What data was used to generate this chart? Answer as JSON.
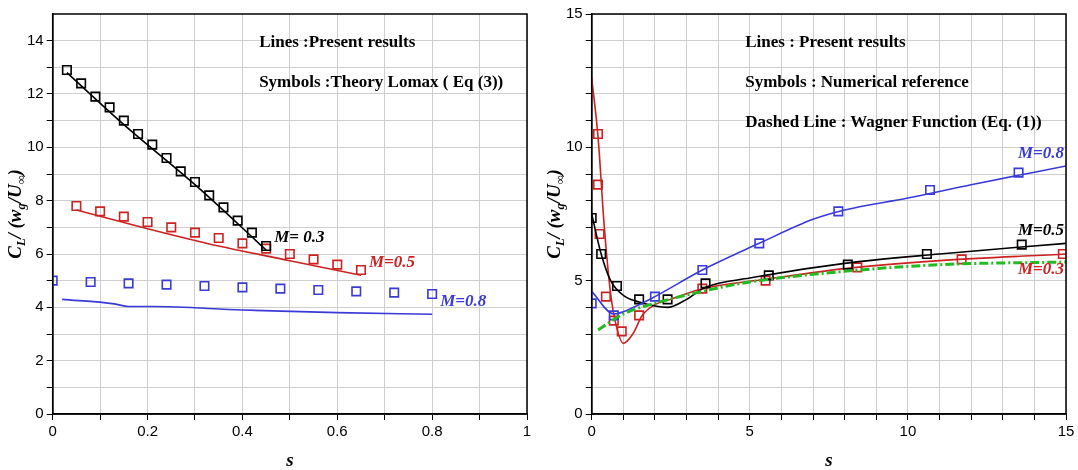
{
  "chart_data": [
    {
      "type": "line",
      "xlabel": "s",
      "ylabel": "C$_{L}$/ (w$_{g}$/U$_{∞}$)",
      "xlim": [
        0,
        1
      ],
      "ylim": [
        0,
        15
      ],
      "xticks": [
        0,
        {
          "value": 0.1,
          "label": null
        },
        0.2,
        {
          "value": 0.3,
          "label": null
        },
        0.4,
        {
          "value": 0.5,
          "label": null
        },
        0.6,
        {
          "value": 0.7,
          "label": null
        },
        0.8,
        {
          "value": 0.9,
          "label": null
        },
        1
      ],
      "yticks": [
        0,
        {
          "value": 1,
          "label": null
        },
        2,
        {
          "value": 3,
          "label": null
        },
        4,
        {
          "value": 5,
          "label": null
        },
        6,
        {
          "value": 7,
          "label": null
        },
        8,
        {
          "value": 9,
          "label": null
        },
        10,
        {
          "value": 11,
          "label": null
        },
        12,
        {
          "value": 13,
          "label": null
        },
        14
      ],
      "grid": true,
      "annotations": [
        "Lines :Present results",
        "Symbols :Theory Lomax ( Eq (3))"
      ],
      "series": [
        {
          "type": "line",
          "name": "M= 0.3",
          "color": "#000000",
          "marker": "none",
          "line_style": "solid",
          "x": [
            0.03,
            0.15,
            0.3,
            0.45
          ],
          "values": [
            12.8,
            10.85,
            8.6,
            6.15
          ]
        },
        {
          "type": "scatter",
          "color": "#000000",
          "marker": "square",
          "x": [
            0.03,
            0.06,
            0.09,
            0.12,
            0.15,
            0.18,
            0.21,
            0.24,
            0.27,
            0.3,
            0.33,
            0.36,
            0.39,
            0.42,
            0.45
          ],
          "values": [
            12.9,
            12.4,
            11.9,
            11.5,
            11.0,
            10.5,
            10.1,
            9.6,
            9.1,
            8.7,
            8.2,
            7.75,
            7.25,
            6.8,
            6.3
          ]
        },
        {
          "type": "line",
          "name": "M=0.5",
          "color": "#cc2222",
          "marker": "none",
          "line_style": "solid",
          "x": [
            0.05,
            0.2,
            0.35,
            0.5,
            0.65
          ],
          "values": [
            7.65,
            6.95,
            6.3,
            5.75,
            5.2
          ]
        },
        {
          "type": "scatter",
          "color": "#cc2222",
          "marker": "square",
          "x": [
            0.05,
            0.1,
            0.15,
            0.2,
            0.25,
            0.3,
            0.35,
            0.4,
            0.45,
            0.5,
            0.55,
            0.6,
            0.65
          ],
          "values": [
            7.8,
            7.6,
            7.4,
            7.2,
            7.0,
            6.8,
            6.6,
            6.4,
            6.2,
            6.0,
            5.8,
            5.6,
            5.4
          ]
        },
        {
          "type": "line",
          "name": "M=0.8",
          "color": "#3a3ad8",
          "marker": "none",
          "line_style": "solid",
          "x": [
            0.02,
            0.13,
            0.16,
            0.21,
            0.4,
            0.6,
            0.8
          ],
          "values": [
            4.3,
            4.13,
            4.03,
            4.03,
            3.9,
            3.8,
            3.74
          ]
        },
        {
          "type": "scatter",
          "color": "#3a3ad8",
          "marker": "square",
          "x": [
            0,
            0.08,
            0.16,
            0.24,
            0.32,
            0.4,
            0.48,
            0.56,
            0.64,
            0.72,
            0.8
          ],
          "values": [
            5.0,
            4.95,
            4.9,
            4.85,
            4.8,
            4.75,
            4.7,
            4.65,
            4.6,
            4.55,
            4.5
          ]
        }
      ]
    },
    {
      "type": "line",
      "xlabel": "s",
      "ylabel": "C$_{L}$/ (w$_{g}$/U$_{∞}$)",
      "xlim": [
        0,
        15
      ],
      "ylim": [
        0,
        15
      ],
      "xticks": [
        0,
        {
          "value": 1,
          "label": null
        },
        {
          "value": 2,
          "label": null
        },
        {
          "value": 3,
          "label": null
        },
        {
          "value": 4,
          "label": null
        },
        5,
        {
          "value": 6,
          "label": null
        },
        {
          "value": 7,
          "label": null
        },
        {
          "value": 8,
          "label": null
        },
        {
          "value": 9,
          "label": null
        },
        10,
        {
          "value": 11,
          "label": null
        },
        {
          "value": 12,
          "label": null
        },
        {
          "value": 13,
          "label": null
        },
        {
          "value": 14,
          "label": null
        },
        15
      ],
      "yticks": [
        0,
        {
          "value": 1,
          "label": null
        },
        {
          "value": 2,
          "label": null
        },
        {
          "value": 3,
          "label": null
        },
        {
          "value": 4,
          "label": null
        },
        5,
        {
          "value": 6,
          "label": null
        },
        {
          "value": 7,
          "label": null
        },
        {
          "value": 8,
          "label": null
        },
        {
          "value": 9,
          "label": null
        },
        10,
        {
          "value": 11,
          "label": null
        },
        {
          "value": 12,
          "label": null
        },
        {
          "value": 13,
          "label": null
        },
        {
          "value": 14,
          "label": null
        },
        15
      ],
      "grid": true,
      "annotations": [
        "Lines : Present results",
        "Symbols : Numerical reference",
        "Dashed Line : Wagner Function (Eq. (1))"
      ],
      "series": [
        {
          "type": "line",
          "color": "#22bb22",
          "marker": "none",
          "line_style": "dashed",
          "x": [
            0.2,
            1,
            2,
            3.5,
            5,
            8,
            11,
            15
          ],
          "values": [
            3.15,
            3.75,
            4.15,
            4.6,
            4.95,
            5.35,
            5.6,
            5.7
          ]
        },
        {
          "type": "line",
          "name": "M=0.8",
          "color": "#3a3ad8",
          "marker": "none",
          "line_style": "solid",
          "x": [
            0,
            0.7,
            1.5,
            2,
            3.5,
            5.3,
            7,
            8,
            10,
            12,
            15
          ],
          "values": [
            4.6,
            3.75,
            4.1,
            4.4,
            5.4,
            6.4,
            7.3,
            7.65,
            8.1,
            8.6,
            9.3
          ]
        },
        {
          "type": "scatter",
          "color": "#3a3ad8",
          "marker": "square",
          "x": [
            0,
            0.7,
            2,
            3.5,
            5.3,
            7.8,
            10.7,
            13.5
          ],
          "values": [
            4.15,
            3.7,
            4.4,
            5.4,
            6.4,
            7.6,
            8.4,
            9.05
          ]
        },
        {
          "type": "line",
          "name": "M=0.5",
          "color": "#000000",
          "marker": "none",
          "line_style": "solid",
          "x": [
            0,
            0.3,
            0.6,
            1,
            1.5,
            2,
            2.4,
            3,
            3.6,
            5,
            8,
            11,
            15
          ],
          "values": [
            7.5,
            6.0,
            5.0,
            4.45,
            4.2,
            4.05,
            4.0,
            4.3,
            4.75,
            5.1,
            5.65,
            6.0,
            6.4
          ]
        },
        {
          "type": "scatter",
          "color": "#000000",
          "marker": "square",
          "x": [
            0,
            0.3,
            0.8,
            1.5,
            2.4,
            3.6,
            5.6,
            8.1,
            10.6,
            13.6
          ],
          "values": [
            7.35,
            6.0,
            4.8,
            4.3,
            4.3,
            4.9,
            5.2,
            5.6,
            6.0,
            6.35
          ]
        },
        {
          "type": "line",
          "name": "M=0.3",
          "color": "#cc2222",
          "marker": "none",
          "line_style": "solid",
          "x": [
            0,
            0.2,
            0.4,
            0.6,
            0.8,
            1,
            1.3,
            1.6,
            2,
            2.5,
            3.5,
            5.5,
            8,
            11,
            15
          ],
          "values": [
            12.6,
            10.4,
            7.0,
            4.5,
            3.2,
            2.65,
            3.0,
            3.7,
            4.1,
            4.3,
            4.7,
            5.05,
            5.45,
            5.75,
            6.0
          ]
        },
        {
          "type": "scatter",
          "color": "#cc2222",
          "marker": "square",
          "x": [
            0.2,
            0.2,
            0.25,
            0.45,
            0.7,
            0.95,
            1.5,
            3.5,
            5.5,
            8.4,
            11.7,
            14.9
          ],
          "values": [
            10.5,
            8.6,
            6.75,
            4.4,
            3.5,
            3.1,
            3.7,
            4.7,
            5.0,
            5.5,
            5.8,
            6.0
          ]
        }
      ]
    }
  ]
}
